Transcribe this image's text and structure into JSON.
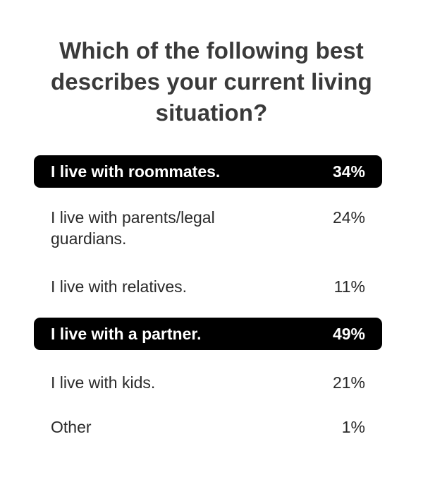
{
  "question": "Which of the following best describes your current living situation?",
  "options": [
    {
      "label": "I live with roommates.",
      "percent": "34%",
      "highlighted": true
    },
    {
      "label": "I live with parents/legal guardians.",
      "percent": "24%",
      "highlighted": false
    },
    {
      "label": "I live with relatives.",
      "percent": "11%",
      "highlighted": false
    },
    {
      "label": "I live with a partner.",
      "percent": "49%",
      "highlighted": true
    },
    {
      "label": "I live with kids.",
      "percent": "21%",
      "highlighted": false
    },
    {
      "label": "Other",
      "percent": "1%",
      "highlighted": false
    }
  ],
  "colors": {
    "highlight_bg": "#000000",
    "highlight_text": "#ffffff",
    "text": "#2a2a2a",
    "background": "#ffffff"
  }
}
